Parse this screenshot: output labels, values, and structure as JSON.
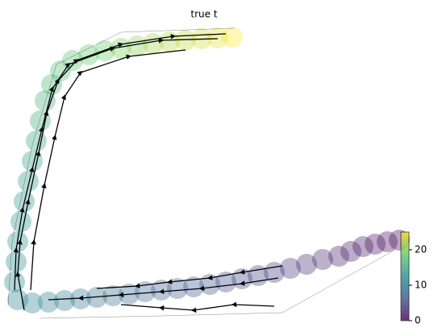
{
  "chart_data": {
    "type": "scatter",
    "title": "true t",
    "colormap": "viridis",
    "x": [
      485,
      470,
      455,
      440,
      425,
      410,
      390,
      370,
      350,
      330,
      310,
      290,
      270,
      250,
      230,
      210,
      190,
      170,
      150,
      130,
      110,
      90,
      70,
      50,
      30,
      12,
      8,
      10,
      12,
      16,
      20,
      25,
      30,
      35,
      40,
      46,
      54,
      65,
      80,
      100,
      120,
      140,
      160,
      180,
      200,
      220,
      240,
      260,
      278
    ],
    "y": [
      102,
      100,
      97,
      94,
      88,
      82,
      78,
      72,
      67,
      62,
      58,
      54,
      50,
      47,
      44,
      42,
      40,
      38,
      35,
      33,
      31,
      29,
      27,
      25,
      24,
      28,
      50,
      75,
      100,
      125,
      150,
      175,
      200,
      225,
      250,
      275,
      295,
      312,
      325,
      332,
      337,
      340,
      343,
      346,
      348,
      350,
      352,
      353,
      354
    ],
    "t": [
      0,
      0.4,
      0.8,
      1.2,
      1.6,
      2,
      2.5,
      3,
      3.5,
      4,
      4.5,
      5,
      5.5,
      6,
      6.5,
      7,
      7.5,
      8,
      8.4,
      8.8,
      9.2,
      9.6,
      10,
      10.3,
      10.6,
      11,
      11.4,
      11.8,
      12.2,
      12.6,
      13,
      13.5,
      14,
      14.5,
      15,
      15.6,
      16.2,
      17,
      17.6,
      18.3,
      19,
      19.7,
      20.4,
      21.1,
      21.8,
      22.5,
      23.2,
      24,
      24.8
    ],
    "xlim": [
      0,
      490
    ],
    "ylim": [
      0,
      370
    ],
    "colorbar": {
      "lim": [
        0,
        25
      ],
      "ticks": [
        0,
        10,
        20
      ]
    }
  }
}
